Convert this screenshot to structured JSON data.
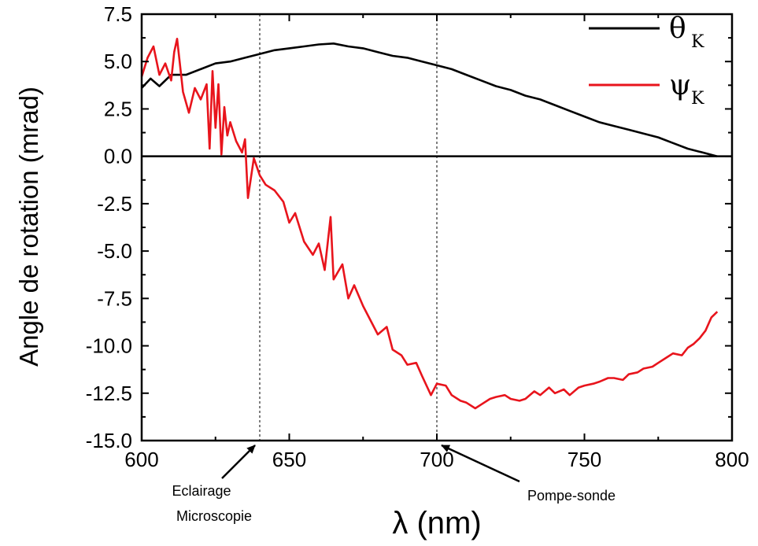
{
  "chart_data": {
    "type": "line",
    "xlabel": "λ (nm)",
    "ylabel": "Angle de rotation (mrad)",
    "xlim": [
      600,
      800
    ],
    "ylim": [
      -15.0,
      7.5
    ],
    "x_ticks": [
      "600",
      "650",
      "700",
      "750",
      "800"
    ],
    "y_ticks": [
      "7.5",
      "5.0",
      "2.5",
      "0.0",
      "-2.5",
      "-5.0",
      "-7.5",
      "-10.0",
      "-12.5",
      "-15.0"
    ],
    "zero_line": true,
    "vlines": [
      640,
      700
    ],
    "legend_position": "top-right",
    "legend": [
      {
        "symbol": "θ",
        "subscript": "K",
        "color": "#000000"
      },
      {
        "symbol": "ψ",
        "subscript": "K",
        "color": "#e8141c"
      }
    ],
    "annotations": [
      {
        "lines": [
          "Eclairage",
          "Microscopie"
        ],
        "points_to_x": 640
      },
      {
        "lines": [
          "Pompe-sonde"
        ],
        "points_to_x": 700
      }
    ],
    "series": [
      {
        "color": "#000000",
        "x": [
          600,
          603,
          606,
          610,
          615,
          620,
          625,
          630,
          635,
          640,
          645,
          650,
          655,
          660,
          665,
          670,
          675,
          680,
          685,
          690,
          695,
          700,
          705,
          710,
          715,
          720,
          725,
          730,
          735,
          740,
          745,
          750,
          755,
          760,
          765,
          770,
          775,
          780,
          785,
          790,
          795
        ],
        "y": [
          3.6,
          4.1,
          3.7,
          4.3,
          4.3,
          4.6,
          4.9,
          5.0,
          5.2,
          5.4,
          5.6,
          5.7,
          5.8,
          5.9,
          5.95,
          5.8,
          5.7,
          5.5,
          5.3,
          5.2,
          5.0,
          4.8,
          4.6,
          4.3,
          4.0,
          3.7,
          3.5,
          3.2,
          3.0,
          2.7,
          2.4,
          2.1,
          1.8,
          1.6,
          1.4,
          1.2,
          1.0,
          0.7,
          0.4,
          0.2,
          0.0
        ]
      },
      {
        "color": "#e8141c",
        "x": [
          600,
          602,
          604,
          606,
          608,
          610,
          611,
          612,
          614,
          616,
          618,
          620,
          622,
          623,
          624,
          625,
          626,
          627,
          628,
          629,
          630,
          632,
          634,
          635,
          636,
          638,
          640,
          642,
          645,
          648,
          650,
          652,
          655,
          658,
          660,
          662,
          664,
          665,
          668,
          670,
          672,
          675,
          678,
          680,
          683,
          685,
          688,
          690,
          693,
          695,
          698,
          700,
          703,
          705,
          708,
          710,
          713,
          715,
          718,
          720,
          723,
          725,
          728,
          730,
          733,
          735,
          738,
          740,
          743,
          745,
          748,
          750,
          753,
          755,
          758,
          760,
          763,
          765,
          768,
          770,
          773,
          775,
          778,
          780,
          783,
          785,
          787,
          789,
          791,
          793,
          795
        ],
        "y": [
          4.2,
          5.2,
          5.8,
          4.3,
          4.9,
          4.0,
          5.5,
          6.2,
          3.4,
          2.3,
          3.6,
          3.0,
          3.8,
          0.4,
          4.5,
          1.5,
          3.8,
          0.1,
          2.6,
          1.1,
          1.8,
          0.8,
          0.2,
          0.9,
          -2.2,
          -0.1,
          -1.0,
          -1.5,
          -1.8,
          -2.4,
          -3.5,
          -3.0,
          -4.5,
          -5.2,
          -4.6,
          -6.0,
          -3.2,
          -6.5,
          -5.7,
          -7.5,
          -6.8,
          -7.9,
          -8.8,
          -9.4,
          -9.0,
          -10.2,
          -10.5,
          -11.0,
          -10.9,
          -11.6,
          -12.6,
          -12.0,
          -12.1,
          -12.6,
          -12.9,
          -13.0,
          -13.3,
          -13.1,
          -12.8,
          -12.7,
          -12.6,
          -12.8,
          -12.9,
          -12.8,
          -12.4,
          -12.6,
          -12.2,
          -12.5,
          -12.3,
          -12.6,
          -12.2,
          -12.1,
          -12.0,
          -11.9,
          -11.7,
          -11.7,
          -11.8,
          -11.5,
          -11.4,
          -11.2,
          -11.1,
          -10.9,
          -10.6,
          -10.4,
          -10.5,
          -10.1,
          -9.9,
          -9.6,
          -9.2,
          -8.5,
          -8.2
        ]
      }
    ]
  }
}
